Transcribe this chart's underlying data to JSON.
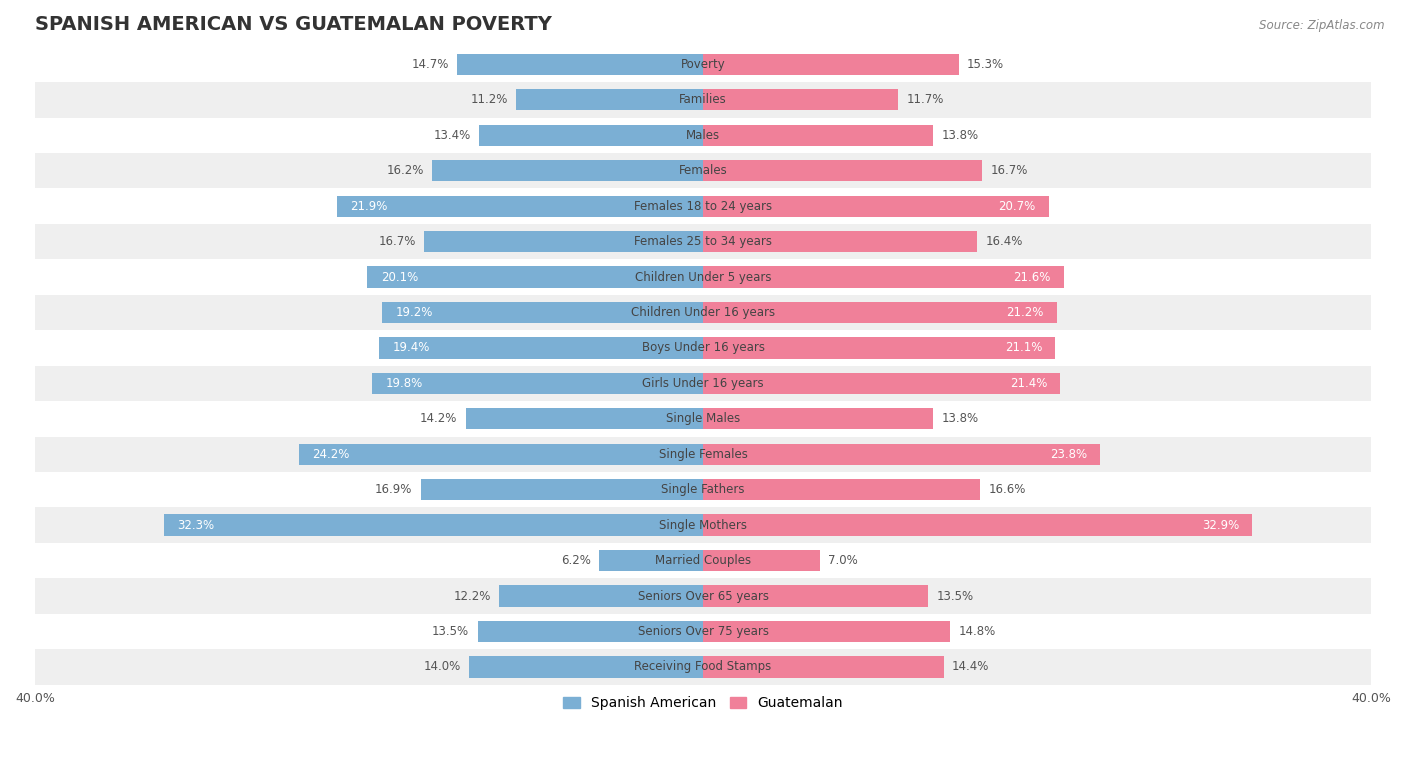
{
  "title": "SPANISH AMERICAN VS GUATEMALAN POVERTY",
  "source": "Source: ZipAtlas.com",
  "categories": [
    "Poverty",
    "Families",
    "Males",
    "Females",
    "Females 18 to 24 years",
    "Females 25 to 34 years",
    "Children Under 5 years",
    "Children Under 16 years",
    "Boys Under 16 years",
    "Girls Under 16 years",
    "Single Males",
    "Single Females",
    "Single Fathers",
    "Single Mothers",
    "Married Couples",
    "Seniors Over 65 years",
    "Seniors Over 75 years",
    "Receiving Food Stamps"
  ],
  "spanish_american": [
    14.7,
    11.2,
    13.4,
    16.2,
    21.9,
    16.7,
    20.1,
    19.2,
    19.4,
    19.8,
    14.2,
    24.2,
    16.9,
    32.3,
    6.2,
    12.2,
    13.5,
    14.0
  ],
  "guatemalan": [
    15.3,
    11.7,
    13.8,
    16.7,
    20.7,
    16.4,
    21.6,
    21.2,
    21.1,
    21.4,
    13.8,
    23.8,
    16.6,
    32.9,
    7.0,
    13.5,
    14.8,
    14.4
  ],
  "spanish_color": "#7bafd4",
  "guatemalan_color": "#f08099",
  "background_color": "#ffffff",
  "row_even_color": "#ffffff",
  "row_odd_color": "#efefef",
  "axis_max": 40.0,
  "bar_height": 0.6,
  "label_fontsize": 8.5,
  "title_fontsize": 14,
  "legend_fontsize": 10,
  "value_inside_threshold": 19.0
}
